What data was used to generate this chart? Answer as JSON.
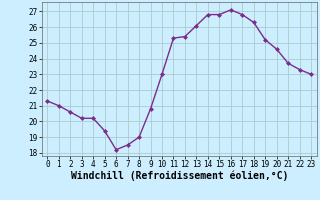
{
  "x": [
    0,
    1,
    2,
    3,
    4,
    5,
    6,
    7,
    8,
    9,
    10,
    11,
    12,
    13,
    14,
    15,
    16,
    17,
    18,
    19,
    20,
    21,
    22,
    23
  ],
  "y": [
    21.3,
    21.0,
    20.6,
    20.2,
    20.2,
    19.4,
    18.2,
    18.5,
    19.0,
    20.8,
    23.0,
    25.3,
    25.4,
    26.1,
    26.8,
    26.8,
    27.1,
    26.8,
    26.3,
    25.2,
    24.6,
    23.7,
    23.3,
    23.0
  ],
  "line_color": "#7B2D8B",
  "marker": "D",
  "marker_size": 2.0,
  "bg_color": "#CCEEFF",
  "grid_color": "#AACCCC",
  "xlabel": "Windchill (Refroidissement éolien,°C)",
  "xlabel_fontsize": 7,
  "ylim": [
    17.8,
    27.6
  ],
  "yticks": [
    18,
    19,
    20,
    21,
    22,
    23,
    24,
    25,
    26,
    27
  ],
  "xticks": [
    0,
    1,
    2,
    3,
    4,
    5,
    6,
    7,
    8,
    9,
    10,
    11,
    12,
    13,
    14,
    15,
    16,
    17,
    18,
    19,
    20,
    21,
    22,
    23
  ],
  "tick_fontsize": 5.5,
  "line_width": 1.0
}
